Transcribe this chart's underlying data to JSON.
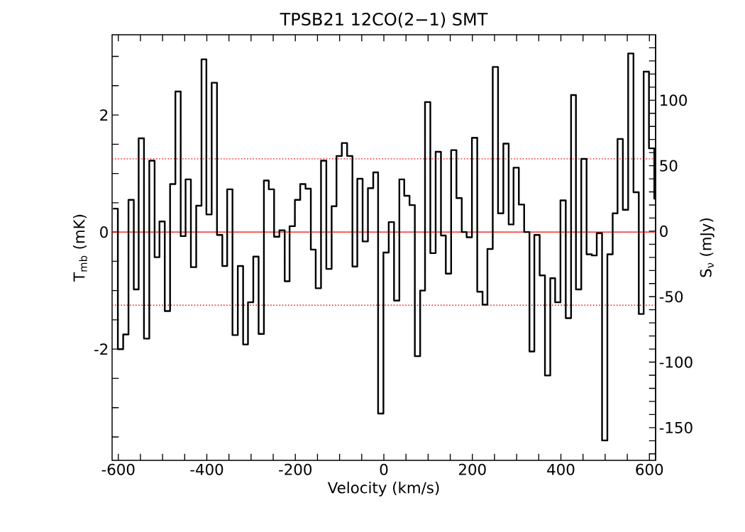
{
  "chart_data": {
    "type": "step",
    "title": "TPSB21 12CO(2−1) SMT",
    "xlabel": "Velocity (km/s)",
    "ylabel": "T$_{mb}$ (mK)",
    "y2label": "S$_{ν}$ (mJy)",
    "color": "#000000",
    "x": [
      -612,
      -601,
      -589,
      -577,
      -565,
      -554,
      -542,
      -530,
      -518,
      -507,
      -495,
      -483,
      -471,
      -459,
      -448,
      -436,
      -424,
      -412,
      -401,
      -389,
      -377,
      -365,
      -354,
      -342,
      -330,
      -318,
      -307,
      -295,
      -283,
      -271,
      -260,
      -248,
      -236,
      -224,
      -213,
      -201,
      -189,
      -177,
      -165,
      -154,
      -142,
      -130,
      -118,
      -107,
      -95,
      -83,
      -71,
      -60,
      -48,
      -36,
      -24,
      -13,
      -1,
      11,
      23,
      35,
      46,
      58,
      70,
      82,
      93,
      105,
      117,
      129,
      140,
      152,
      164,
      176,
      187,
      199,
      211,
      223,
      234,
      246,
      258,
      270,
      282,
      293,
      305,
      317,
      329,
      340,
      352,
      364,
      376,
      387,
      399,
      411,
      423,
      434,
      446,
      458,
      470,
      481,
      493,
      505,
      517,
      528,
      540,
      552,
      564,
      576,
      587,
      599,
      611
    ],
    "values": [
      0.4,
      -2.0,
      -1.75,
      0.55,
      -0.98,
      1.6,
      -1.82,
      1.22,
      -0.43,
      0.18,
      -1.35,
      0.82,
      2.4,
      -0.07,
      0.9,
      -0.6,
      0.45,
      2.95,
      0.3,
      2.55,
      -0.05,
      -0.58,
      0.73,
      -1.76,
      -0.58,
      -1.92,
      -1.2,
      -0.42,
      -1.74,
      0.88,
      0.73,
      -0.08,
      0.03,
      -0.84,
      0.1,
      0.55,
      0.82,
      0.74,
      -0.3,
      -0.96,
      1.22,
      -0.63,
      0.44,
      1.3,
      1.52,
      1.3,
      -0.59,
      0.91,
      -0.16,
      0.75,
      1.02,
      -3.1,
      -0.35,
      0.17,
      -1.17,
      0.9,
      0.62,
      0.46,
      -2.12,
      -1.0,
      2.22,
      -0.36,
      1.37,
      -0.06,
      -0.71,
      1.4,
      0.58,
      0.0,
      -0.09,
      1.61,
      -1.02,
      -1.24,
      -0.29,
      2.82,
      0.32,
      1.51,
      0.13,
      1.1,
      0.47,
      0.0,
      -2.04,
      -0.05,
      -0.74,
      -2.45,
      -0.79,
      -1.2,
      0.54,
      -1.47,
      2.34,
      -0.98,
      1.25,
      -0.38,
      -0.4,
      -0.02,
      -3.56,
      -0.38,
      0.32,
      1.59,
      0.38,
      3.05,
      0.68,
      -1.4,
      2.74,
      1.43,
      0.57
    ],
    "xlim": [
      -614,
      614
    ],
    "ylim": [
      -3.9,
      3.37
    ],
    "y2lim": [
      -175,
      150
    ],
    "xticks": [
      -600,
      {
        "value": -550,
        "label": null
      },
      {
        "value": -500,
        "label": null
      },
      {
        "value": -450,
        "label": null
      },
      -400,
      {
        "value": -350,
        "label": null
      },
      {
        "value": -300,
        "label": null
      },
      {
        "value": -250,
        "label": null
      },
      -200,
      {
        "value": -150,
        "label": null
      },
      {
        "value": -100,
        "label": null
      },
      {
        "value": -50,
        "label": null
      },
      0,
      {
        "value": 50,
        "label": null
      },
      {
        "value": 100,
        "label": null
      },
      {
        "value": 150,
        "label": null
      },
      200,
      {
        "value": 250,
        "label": null
      },
      {
        "value": 300,
        "label": null
      },
      {
        "value": 350,
        "label": null
      },
      400,
      {
        "value": 450,
        "label": null
      },
      {
        "value": 500,
        "label": null
      },
      {
        "value": 550,
        "label": null
      },
      600
    ],
    "yticks": [
      {
        "value": -3.5,
        "label": null
      },
      {
        "value": -3,
        "label": null
      },
      {
        "value": -2.5,
        "label": null
      },
      -2,
      {
        "value": -1.5,
        "label": null
      },
      {
        "value": -1,
        "label": null
      },
      {
        "value": -0.5,
        "label": null
      },
      0,
      {
        "value": 0.5,
        "label": null
      },
      {
        "value": 1,
        "label": null
      },
      {
        "value": 1.5,
        "label": null
      },
      2,
      {
        "value": 2.5,
        "label": null
      },
      {
        "value": 3,
        "label": null
      }
    ],
    "y2ticks": [
      {
        "value": -170,
        "label": null
      },
      {
        "value": -160,
        "label": null
      },
      -150,
      {
        "value": -140,
        "label": null
      },
      {
        "value": -130,
        "label": null
      },
      {
        "value": -120,
        "label": null
      },
      {
        "value": -110,
        "label": null
      },
      -100,
      {
        "value": -90,
        "label": null
      },
      {
        "value": -80,
        "label": null
      },
      {
        "value": -70,
        "label": null
      },
      {
        "value": -60,
        "label": null
      },
      -50,
      {
        "value": -40,
        "label": null
      },
      {
        "value": -30,
        "label": null
      },
      {
        "value": -20,
        "label": null
      },
      {
        "value": -10,
        "label": null
      },
      0,
      {
        "value": 10,
        "label": null
      },
      {
        "value": 20,
        "label": null
      },
      {
        "value": 30,
        "label": null
      },
      {
        "value": 40,
        "label": null
      },
      50,
      {
        "value": 60,
        "label": null
      },
      {
        "value": 70,
        "label": null
      },
      {
        "value": 80,
        "label": null
      },
      {
        "value": 90,
        "label": null
      },
      100,
      {
        "value": 110,
        "label": null
      },
      {
        "value": 120,
        "label": null
      },
      {
        "value": 130,
        "label": null
      },
      {
        "value": 140,
        "label": null
      }
    ],
    "ref_lines": [
      {
        "axis": "y",
        "value": 0,
        "color": "#ff0000",
        "line_style": "solid"
      },
      {
        "axis": "y",
        "value": 1.25,
        "color": "#ff0000",
        "line_style": "dotted"
      },
      {
        "axis": "y",
        "value": -1.25,
        "color": "#ff0000",
        "line_style": "dotted"
      }
    ]
  }
}
